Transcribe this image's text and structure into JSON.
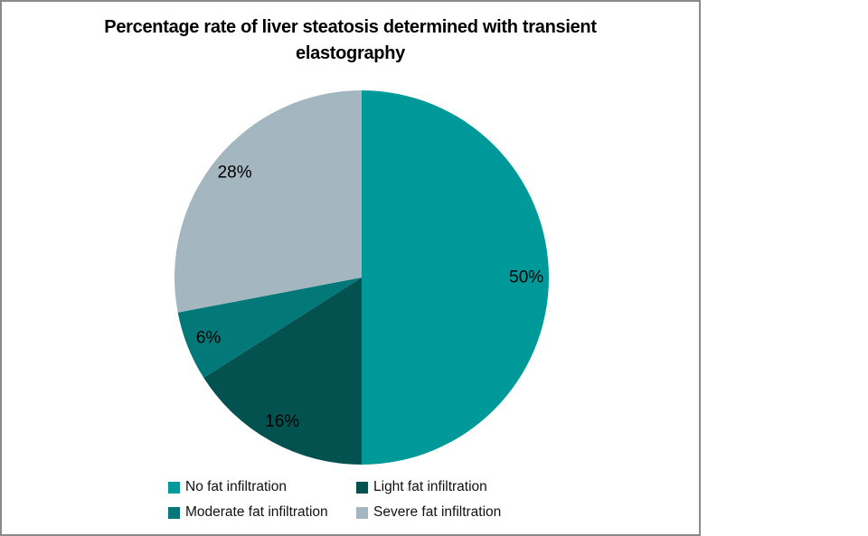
{
  "frame": {
    "border_color": "#8a8a8a",
    "background": "#ffffff"
  },
  "chart_data": {
    "type": "pie",
    "title": "Percentage rate of liver steatosis determined with transient elastography",
    "title_lines": [
      "Percentage rate of liver steatosis determined with transient",
      "elastography"
    ],
    "categories": [
      "No fat infiltration",
      "Light fat infiltration",
      "Moderate fat infiltration",
      "Severe fat infiltration"
    ],
    "values": [
      50,
      16,
      6,
      28
    ],
    "data_labels": [
      "50%",
      "16%",
      "6%",
      "28%"
    ],
    "colors": [
      "#009999",
      "#045250",
      "#027878",
      "#a4b6bf"
    ],
    "start_angle_deg": 0,
    "direction": "clockwise",
    "legend_position": "bottom",
    "legend_columns": 2,
    "label_color": "#000000"
  }
}
